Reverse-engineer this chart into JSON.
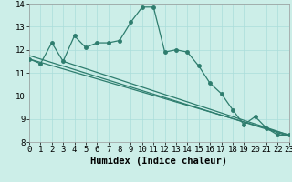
{
  "title": "",
  "xlabel": "Humidex (Indice chaleur)",
  "bg_color": "#cceee8",
  "grid_color": "#aaddda",
  "line_color": "#2e7d6e",
  "x_values": [
    0,
    1,
    2,
    3,
    4,
    5,
    6,
    7,
    8,
    9,
    10,
    11,
    12,
    13,
    14,
    15,
    16,
    17,
    18,
    19,
    20,
    21,
    22,
    23
  ],
  "line1": [
    11.6,
    11.4,
    12.3,
    11.5,
    12.6,
    12.1,
    12.3,
    12.3,
    12.4,
    13.2,
    13.85,
    13.85,
    11.9,
    12.0,
    11.9,
    11.3,
    10.55,
    10.1,
    9.4,
    8.75,
    9.1,
    8.6,
    8.3,
    8.3
  ],
  "straight_lines": [
    {
      "x0": 0,
      "y0": 11.6,
      "x1": 23,
      "y1": 8.3
    },
    {
      "x0": 0,
      "y0": 11.75,
      "x1": 23,
      "y1": 8.25
    },
    {
      "x0": 3,
      "y0": 11.5,
      "x1": 23,
      "y1": 8.3
    }
  ],
  "ylim": [
    8,
    14
  ],
  "xlim": [
    0,
    23
  ],
  "yticks": [
    8,
    9,
    10,
    11,
    12,
    13,
    14
  ],
  "xticks": [
    0,
    1,
    2,
    3,
    4,
    5,
    6,
    7,
    8,
    9,
    10,
    11,
    12,
    13,
    14,
    15,
    16,
    17,
    18,
    19,
    20,
    21,
    22,
    23
  ],
  "tick_fontsize": 6.5,
  "xlabel_fontsize": 7.5
}
